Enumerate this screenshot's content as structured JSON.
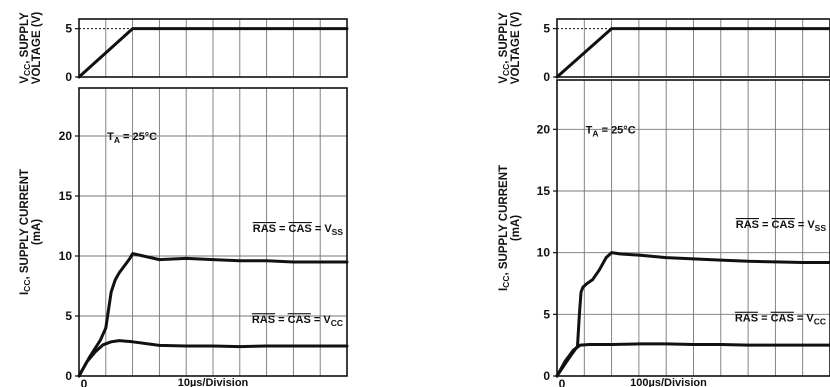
{
  "chart_data": [
    {
      "type": "line",
      "voltage_panel": {
        "ylabel_line1": "V",
        "ylabel_line1_sub": "CC",
        "ylabel_line1_rest": ", SUPPLY",
        "ylabel_line2": "VOLTAGE (V)",
        "ylim": [
          0,
          6
        ],
        "yticks": [
          {
            "v": 0,
            "label": "0"
          },
          {
            "v": 5,
            "label": "5"
          }
        ],
        "series": [
          {
            "x": [
              0,
              2,
              10
            ],
            "y": [
              0,
              5,
              5
            ]
          }
        ],
        "reference_level": 5
      },
      "current_panel": {
        "ylabel_line1": "I",
        "ylabel_line1_sub": "CC",
        "ylabel_line1_rest": ", SUPPLY CURRENT",
        "ylabel_line2": "(mA)",
        "ylim": [
          0,
          24
        ],
        "yticks": [
          {
            "v": 0,
            "label": "0"
          },
          {
            "v": 5,
            "label": "5"
          },
          {
            "v": 10,
            "label": "10"
          },
          {
            "v": 15,
            "label": "15"
          },
          {
            "v": 20,
            "label": "20"
          }
        ],
        "series": [
          {
            "x": [
              0,
              0.2,
              0.4,
              0.6,
              0.8,
              1.0,
              1.1,
              1.2,
              1.35,
              1.5,
              1.7,
              1.9,
              2.0,
              2.4,
              3.0,
              4,
              5,
              6,
              7,
              8,
              9,
              10
            ],
            "y": [
              0,
              0.8,
              1.6,
              2.3,
              3.0,
              4.0,
              5.5,
              7.0,
              8.0,
              8.6,
              9.2,
              9.8,
              10.2,
              10.0,
              9.7,
              9.8,
              9.7,
              9.6,
              9.6,
              9.5,
              9.5,
              9.5
            ]
          },
          {
            "x": [
              0,
              0.3,
              0.6,
              0.9,
              1.2,
              1.5,
              2.0,
              3.0,
              4,
              5,
              6,
              7,
              8,
              9,
              10
            ],
            "y": [
              0,
              1.2,
              2.0,
              2.6,
              2.85,
              2.95,
              2.85,
              2.55,
              2.5,
              2.5,
              2.45,
              2.5,
              2.5,
              2.5,
              2.5
            ]
          }
        ]
      },
      "x_origin_label": "0",
      "xlabel": "10µs/Division",
      "annotation_ta": {
        "pre": "T",
        "sub": "A",
        "rest": " = 25°C"
      },
      "label_vss": {
        "a": "RAS",
        "eq": " = ",
        "b": "CAS",
        "eq2": " = V",
        "sub": "SS"
      },
      "label_vcc": {
        "a": "RAS",
        "eq": " = ",
        "b": "CAS",
        "eq2": " = V",
        "sub": "CC"
      }
    },
    {
      "type": "line",
      "voltage_panel": {
        "ylabel_line1": "V",
        "ylabel_line1_sub": "CC",
        "ylabel_line1_rest": ", SUPPLY",
        "ylabel_line2": "VOLTAGE (V)",
        "ylim": [
          0,
          6
        ],
        "yticks": [
          {
            "v": 0,
            "label": "0"
          },
          {
            "v": 5,
            "label": "5"
          }
        ],
        "series": [
          {
            "x": [
              0,
              2,
              10
            ],
            "y": [
              0,
              5,
              5
            ]
          }
        ],
        "reference_level": 5
      },
      "current_panel": {
        "ylabel_line1": "I",
        "ylabel_line1_sub": "CC",
        "ylabel_line1_rest": ", SUPPLY CURRENT",
        "ylabel_line2": "(mA)",
        "ylim": [
          0,
          24
        ],
        "yticks": [
          {
            "v": 0,
            "label": "0"
          },
          {
            "v": 5,
            "label": "5"
          },
          {
            "v": 10,
            "label": "10"
          },
          {
            "v": 15,
            "label": "15"
          },
          {
            "v": 20,
            "label": "20"
          }
        ],
        "series": [
          {
            "x": [
              0,
              0.3,
              0.55,
              0.75,
              0.82,
              0.88,
              0.95,
              1.1,
              1.3,
              1.55,
              1.8,
              2.0,
              2.3,
              3,
              4,
              5,
              6,
              7,
              8,
              9,
              10
            ],
            "y": [
              0,
              1.0,
              1.8,
              2.4,
              5.0,
              6.8,
              7.2,
              7.5,
              7.8,
              8.6,
              9.6,
              10.0,
              9.9,
              9.8,
              9.6,
              9.5,
              9.4,
              9.3,
              9.25,
              9.2,
              9.2
            ]
          },
          {
            "x": [
              0,
              0.3,
              0.6,
              0.85,
              1.2,
              2,
              3,
              4,
              5,
              6,
              7,
              8,
              9,
              10
            ],
            "y": [
              0,
              1.2,
              2.1,
              2.5,
              2.55,
              2.55,
              2.6,
              2.6,
              2.55,
              2.55,
              2.5,
              2.5,
              2.5,
              2.5
            ]
          }
        ]
      },
      "x_origin_label": "0",
      "xlabel": "100µs/Division",
      "annotation_ta": {
        "pre": "T",
        "sub": "A",
        "rest": " = 25°C"
      },
      "label_vss": {
        "a": "RAS",
        "eq": " = ",
        "b": "CAS",
        "eq2": " = V",
        "sub": "SS"
      },
      "label_vcc": {
        "a": "RAS",
        "eq": " = ",
        "b": "CAS",
        "eq2": " = V",
        "sub": "CC"
      }
    }
  ]
}
